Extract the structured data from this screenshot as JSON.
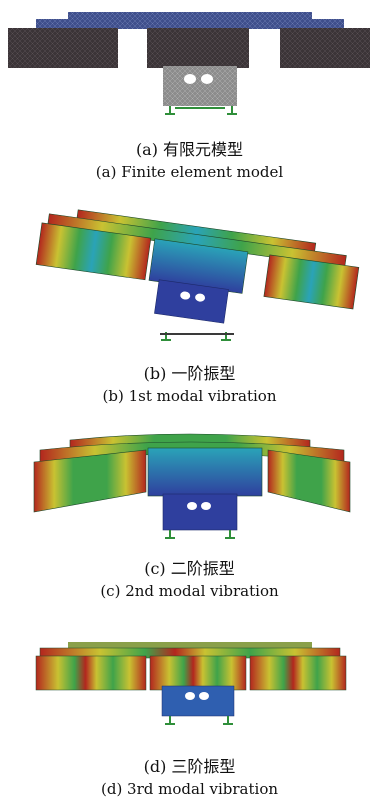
{
  "panels": [
    {
      "caption_cn": "(a) 有限元模型",
      "caption_en": "(a) Finite element model",
      "type": "finite-element-mesh"
    },
    {
      "caption_cn": "(b) 一阶振型",
      "caption_en": "(b) 1st modal vibration",
      "type": "mode-shape-pitch"
    },
    {
      "caption_cn": "(c) 二阶振型",
      "caption_en": "(c) 2nd modal vibration",
      "type": "mode-shape-roll"
    },
    {
      "caption_cn": "(d) 三阶振型",
      "caption_en": "(d) 3rd modal vibration",
      "type": "mode-shape-twist"
    }
  ],
  "colors": {
    "mesh_dark": "#3b3437",
    "mesh_blue": "#3f4f8c",
    "mesh_gray": "#8c8c8c",
    "contour_red": "#b3261e",
    "contour_yellow": "#c9c232",
    "contour_green": "#3fa34a",
    "contour_cyan": "#2aa3b8",
    "contour_blue": "#2f3f9e",
    "support_green": "#2f8f3a"
  }
}
